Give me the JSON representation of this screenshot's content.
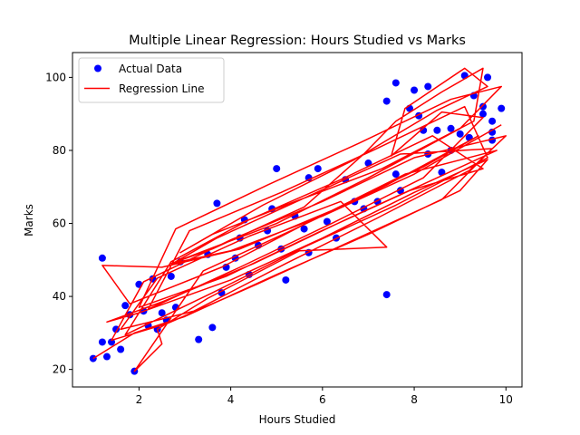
{
  "chart_data": {
    "type": "scatter",
    "title": "Multiple Linear Regression: Hours Studied vs Marks",
    "xlabel": "Hours Studied",
    "ylabel": "Marks",
    "xlim": [
      0.55,
      10.35
    ],
    "ylim": [
      15.2,
      106.8
    ],
    "xticks": [
      2,
      4,
      6,
      8,
      10
    ],
    "yticks": [
      20,
      40,
      60,
      80,
      100
    ],
    "grid": false,
    "legend_position": "top-left",
    "series": [
      {
        "name": "Actual Data",
        "kind": "scatter",
        "color": "#0000ff",
        "points": [
          [
            1.0,
            23.0
          ],
          [
            1.2,
            27.5
          ],
          [
            1.2,
            50.5
          ],
          [
            1.3,
            23.5
          ],
          [
            1.4,
            27.5
          ],
          [
            1.5,
            31.0
          ],
          [
            1.6,
            25.5
          ],
          [
            1.7,
            37.5
          ],
          [
            1.8,
            35.0
          ],
          [
            1.9,
            19.5
          ],
          [
            2.0,
            43.3
          ],
          [
            2.1,
            36.0
          ],
          [
            2.2,
            32.0
          ],
          [
            2.3,
            44.8
          ],
          [
            2.4,
            31.0
          ],
          [
            2.5,
            35.5
          ],
          [
            2.6,
            33.5
          ],
          [
            2.7,
            45.5
          ],
          [
            2.8,
            37.0
          ],
          [
            2.9,
            49.5
          ],
          [
            3.3,
            28.2
          ],
          [
            3.5,
            51.5
          ],
          [
            3.6,
            31.5
          ],
          [
            3.7,
            65.5
          ],
          [
            3.8,
            41.0
          ],
          [
            3.9,
            48.0
          ],
          [
            4.1,
            50.5
          ],
          [
            4.2,
            56.0
          ],
          [
            4.3,
            61.0
          ],
          [
            4.4,
            46.0
          ],
          [
            4.6,
            54.0
          ],
          [
            4.8,
            58.0
          ],
          [
            4.9,
            64.0
          ],
          [
            5.0,
            75.0
          ],
          [
            5.1,
            53.0
          ],
          [
            5.2,
            44.5
          ],
          [
            5.4,
            62.0
          ],
          [
            5.6,
            58.5
          ],
          [
            5.7,
            72.5
          ],
          [
            5.7,
            52.0
          ],
          [
            5.9,
            75.0
          ],
          [
            6.1,
            60.5
          ],
          [
            6.3,
            56.0
          ],
          [
            6.5,
            72.0
          ],
          [
            6.7,
            66.0
          ],
          [
            6.9,
            64.0
          ],
          [
            7.0,
            76.5
          ],
          [
            7.2,
            66.0
          ],
          [
            7.4,
            93.5
          ],
          [
            7.4,
            40.5
          ],
          [
            7.6,
            98.5
          ],
          [
            7.6,
            73.5
          ],
          [
            7.7,
            69.0
          ],
          [
            7.9,
            91.5
          ],
          [
            8.0,
            96.5
          ],
          [
            8.1,
            89.5
          ],
          [
            8.2,
            85.5
          ],
          [
            8.3,
            97.5
          ],
          [
            8.3,
            79.0
          ],
          [
            8.5,
            85.5
          ],
          [
            8.6,
            74.0
          ],
          [
            8.8,
            86.0
          ],
          [
            8.8,
            80.0
          ],
          [
            9.0,
            84.5
          ],
          [
            9.1,
            100.5
          ],
          [
            9.2,
            83.5
          ],
          [
            9.3,
            95.0
          ],
          [
            9.5,
            92.0
          ],
          [
            9.5,
            90.0
          ],
          [
            9.6,
            100.0
          ],
          [
            9.7,
            88.0
          ],
          [
            9.7,
            85.0
          ],
          [
            9.7,
            82.8
          ],
          [
            9.9,
            91.5
          ]
        ]
      },
      {
        "name": "Regression Line",
        "kind": "line",
        "color": "#ff0000",
        "paths": [
          [
            [
              1.0,
              23.0
            ],
            [
              1.9,
              30.0
            ],
            [
              3.0,
              34.5
            ],
            [
              5.0,
              46.0
            ],
            [
              7.0,
              57.0
            ],
            [
              9.0,
              69.0
            ],
            [
              9.6,
              77.5
            ],
            [
              8.0,
              68.5
            ],
            [
              6.0,
              56.0
            ],
            [
              4.0,
              44.5
            ],
            [
              2.0,
              35.5
            ],
            [
              1.3,
              33.0
            ],
            [
              2.5,
              38.5
            ],
            [
              4.5,
              49.0
            ],
            [
              6.5,
              61.0
            ],
            [
              8.5,
              72.5
            ],
            [
              9.8,
              80.0
            ],
            [
              7.8,
              73.5
            ],
            [
              5.8,
              61.0
            ],
            [
              3.8,
              48.0
            ],
            [
              1.8,
              38.0
            ],
            [
              1.2,
              48.5
            ],
            [
              2.5,
              48.0
            ],
            [
              4.2,
              53.0
            ],
            [
              6.2,
              63.5
            ],
            [
              8.2,
              75.5
            ],
            [
              9.4,
              84.0
            ],
            [
              7.4,
              70.5
            ],
            [
              5.4,
              58.5
            ],
            [
              3.4,
              47.0
            ],
            [
              1.9,
              19.5
            ],
            [
              2.5,
              27.0
            ],
            [
              2.4,
              31.0
            ],
            [
              3.5,
              39.5
            ],
            [
              5.5,
              52.5
            ],
            [
              7.4,
              53.5
            ],
            [
              6.4,
              66.0
            ],
            [
              4.4,
              56.5
            ],
            [
              2.4,
              45.0
            ],
            [
              1.6,
              31.0
            ],
            [
              3.2,
              36.0
            ],
            [
              5.2,
              49.0
            ],
            [
              7.2,
              61.5
            ],
            [
              9.2,
              74.5
            ],
            [
              10.0,
              84.0
            ],
            [
              8.0,
              78.0
            ],
            [
              6.0,
              66.0
            ],
            [
              4.0,
              55.5
            ],
            [
              2.1,
              44.0
            ],
            [
              1.4,
              28.0
            ],
            [
              2.6,
              32.5
            ],
            [
              4.6,
              43.5
            ],
            [
              6.6,
              55.0
            ],
            [
              8.6,
              66.5
            ],
            [
              9.7,
              80.5
            ],
            [
              7.7,
              79.0
            ],
            [
              5.7,
              67.5
            ],
            [
              3.7,
              56.0
            ],
            [
              2.8,
              49.5
            ],
            [
              5.0,
              60.0
            ],
            [
              7.0,
              72.5
            ],
            [
              9.0,
              86.0
            ],
            [
              9.9,
              97.5
            ],
            [
              8.8,
              94.0
            ],
            [
              6.8,
              82.0
            ],
            [
              4.8,
              70.5
            ],
            [
              2.8,
              58.5
            ],
            [
              2.0,
              37.0
            ],
            [
              3.9,
              45.5
            ],
            [
              5.9,
              57.5
            ],
            [
              7.9,
              69.0
            ],
            [
              9.5,
              75.0
            ],
            [
              8.4,
              84.0
            ],
            [
              6.4,
              72.0
            ],
            [
              4.4,
              61.0
            ],
            [
              2.7,
              49.5
            ],
            [
              1.7,
              29.5
            ],
            [
              3.6,
              41.0
            ],
            [
              5.6,
              53.5
            ],
            [
              7.6,
              65.0
            ],
            [
              9.6,
              78.0
            ],
            [
              9.1,
              92.0
            ],
            [
              7.1,
              80.0
            ],
            [
              5.1,
              68.5
            ],
            [
              3.1,
              58.0
            ],
            [
              2.2,
              36.5
            ],
            [
              4.2,
              48.0
            ],
            [
              6.2,
              60.0
            ],
            [
              8.2,
              72.5
            ],
            [
              9.5,
              89.0
            ],
            [
              8.6,
              90.5
            ],
            [
              7.5,
              78.5
            ],
            [
              7.8,
              91.5
            ],
            [
              9.1,
              102.5
            ],
            [
              9.6,
              97.5
            ],
            [
              8.5,
              91.0
            ],
            [
              6.7,
              77.5
            ],
            [
              4.7,
              65.0
            ],
            [
              2.9,
              52.0
            ],
            [
              3.6,
              57.0
            ],
            [
              5.3,
              65.5
            ],
            [
              7.3,
              75.0
            ],
            [
              9.3,
              88.0
            ],
            [
              9.5,
              102.5
            ],
            [
              8.6,
              96.0
            ],
            [
              7.6,
              88.0
            ],
            [
              6.9,
              79.0
            ],
            [
              5.6,
              64.5
            ],
            [
              3.6,
              53.0
            ],
            [
              2.7,
              49.0
            ],
            [
              4.0,
              52.5
            ],
            [
              6.0,
              62.0
            ],
            [
              8.0,
              73.5
            ],
            [
              9.9,
              87.0
            ]
          ]
        ]
      }
    ]
  }
}
